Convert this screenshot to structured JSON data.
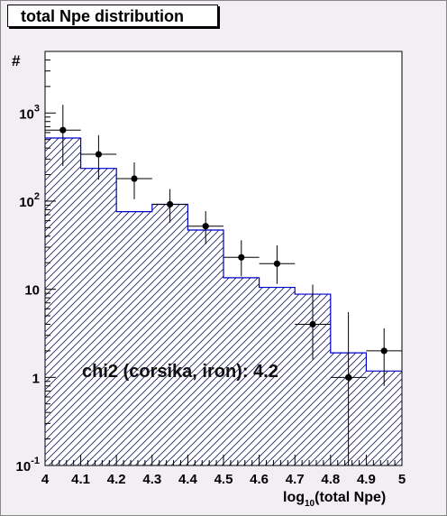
{
  "chart_data": {
    "type": "histogram",
    "title": "total Npe distribution",
    "xlabel_pre": "log",
    "xlabel_sub": "10",
    "xlabel_post": "(total Npe)",
    "ylabel": "#",
    "xlim": [
      4.0,
      5.0
    ],
    "ylim": [
      0.1,
      5000
    ],
    "yscale": "log",
    "x_ticks": [
      "4",
      "4.1",
      "4.2",
      "4.3",
      "4.4",
      "4.5",
      "4.6",
      "4.7",
      "4.8",
      "4.9",
      "5"
    ],
    "y_ticks": [
      {
        "base": "10",
        "exp": "-1",
        "value": 0.1
      },
      {
        "base": "1",
        "exp": "",
        "value": 1
      },
      {
        "base": "10",
        "exp": "",
        "value": 10
      },
      {
        "base": "10",
        "exp": "2",
        "value": 100
      },
      {
        "base": "10",
        "exp": "3",
        "value": 1000
      }
    ],
    "bin_edges": [
      4.0,
      4.1,
      4.2,
      4.3,
      4.4,
      4.5,
      4.6,
      4.7,
      4.8,
      4.9,
      5.0
    ],
    "simulation_series": {
      "values": [
        520,
        235,
        76,
        92,
        47,
        13.5,
        10.5,
        8.8,
        1.9,
        1.18
      ],
      "color": "#0000cc"
    },
    "data_series": {
      "x": [
        4.05,
        4.15,
        4.25,
        4.35,
        4.45,
        4.55,
        4.65,
        4.75,
        4.85,
        4.95
      ],
      "y": [
        640,
        340,
        180,
        92,
        52,
        23,
        19.5,
        4.0,
        1.0,
        2.0
      ],
      "err_low": [
        390,
        165,
        75,
        35,
        19.5,
        9.0,
        8.0,
        2.4,
        0.9,
        1.2
      ],
      "err_high": [
        600,
        220,
        95,
        45,
        25,
        13,
        12,
        7.3,
        4.5,
        1.6
      ],
      "color": "#000000"
    },
    "annotation": "chi2 (corsika, iron): 4.2"
  }
}
